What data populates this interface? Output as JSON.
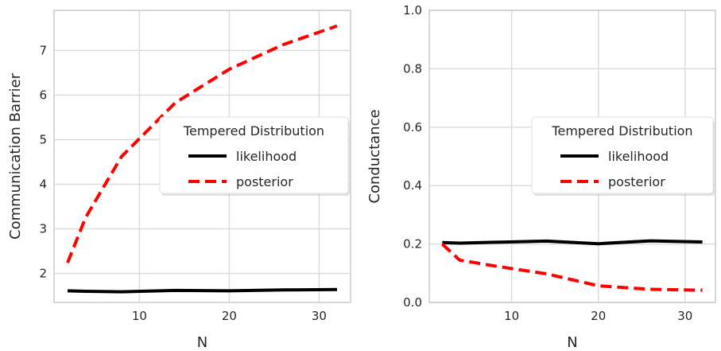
{
  "chart_data": [
    {
      "type": "line",
      "xlabel": "N",
      "ylabel": "Communication Barrier",
      "xlim": [
        0.5,
        33.5
      ],
      "ylim": [
        1.35,
        7.9
      ],
      "xticks": [
        10,
        20,
        30
      ],
      "yticks": [
        2,
        3,
        4,
        5,
        6,
        7
      ],
      "grid": true,
      "legend": {
        "title": "Tempered Distribution",
        "placement": "center-right"
      },
      "series": [
        {
          "name": "likelihood",
          "color": "#000000",
          "style": "solid",
          "x": [
            2,
            4,
            8,
            14,
            20,
            26,
            32
          ],
          "y": [
            1.61,
            1.6,
            1.59,
            1.62,
            1.61,
            1.63,
            1.64
          ]
        },
        {
          "name": "posterior",
          "color": "#ff0000",
          "style": "dashed",
          "x": [
            2,
            4,
            8,
            14,
            20,
            26,
            32
          ],
          "y": [
            2.24,
            3.25,
            4.62,
            5.83,
            6.58,
            7.13,
            7.55
          ]
        }
      ]
    },
    {
      "type": "line",
      "xlabel": "N",
      "ylabel": "Conductance",
      "xlim": [
        0.5,
        33.5
      ],
      "ylim": [
        0.0,
        1.0
      ],
      "xticks": [
        10,
        20,
        30
      ],
      "yticks": [
        0.0,
        0.2,
        0.4,
        0.6,
        0.8,
        1.0
      ],
      "ytick_labels": [
        "0.0",
        "0.2",
        "0.4",
        "0.6",
        "0.8",
        "1.0"
      ],
      "grid": true,
      "legend": {
        "title": "Tempered Distribution",
        "placement": "center-right"
      },
      "series": [
        {
          "name": "likelihood",
          "color": "#000000",
          "style": "solid",
          "x": [
            2,
            4,
            8,
            14,
            20,
            26,
            32
          ],
          "y": [
            0.205,
            0.203,
            0.206,
            0.21,
            0.201,
            0.211,
            0.207
          ]
        },
        {
          "name": "posterior",
          "color": "#ff0000",
          "style": "dashed",
          "x": [
            2,
            4,
            8,
            14,
            20,
            26,
            32
          ],
          "y": [
            0.2,
            0.145,
            0.125,
            0.098,
            0.057,
            0.045,
            0.042
          ]
        }
      ]
    }
  ]
}
